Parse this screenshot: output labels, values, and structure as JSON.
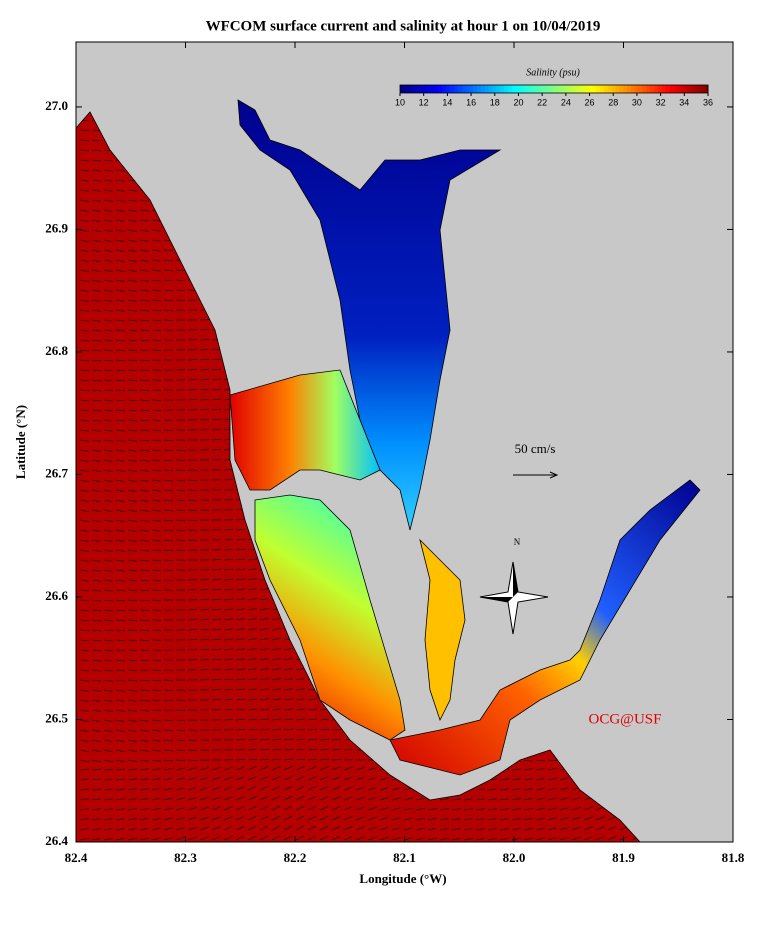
{
  "chart_data": {
    "type": "map",
    "title": "WFCOM surface current and salinity at hour 1 on 10/04/2019",
    "xlabel": "Longitude (°W)",
    "ylabel": "Latitude (°N)",
    "xlim": [
      82.4,
      81.8
    ],
    "ylim": [
      26.4,
      27.053
    ],
    "xticks": [
      82.4,
      82.3,
      82.2,
      82.1,
      {
        "value": 82,
        "label": "82.0"
      },
      81.9,
      81.8
    ],
    "yticks": [
      26.4,
      26.5,
      26.6,
      26.7,
      26.8,
      26.9,
      {
        "value": 27,
        "label": "27.0"
      }
    ],
    "colorbar": {
      "label": "Salinity (psu)",
      "lim": [
        10,
        36
      ],
      "ticks": [
        10,
        12,
        14,
        16,
        18,
        20,
        22,
        24,
        26,
        28,
        30,
        32,
        34,
        36
      ]
    },
    "annotations": {
      "scale": "50 cm/s",
      "north": "N",
      "credit": "OCG@USF"
    }
  }
}
